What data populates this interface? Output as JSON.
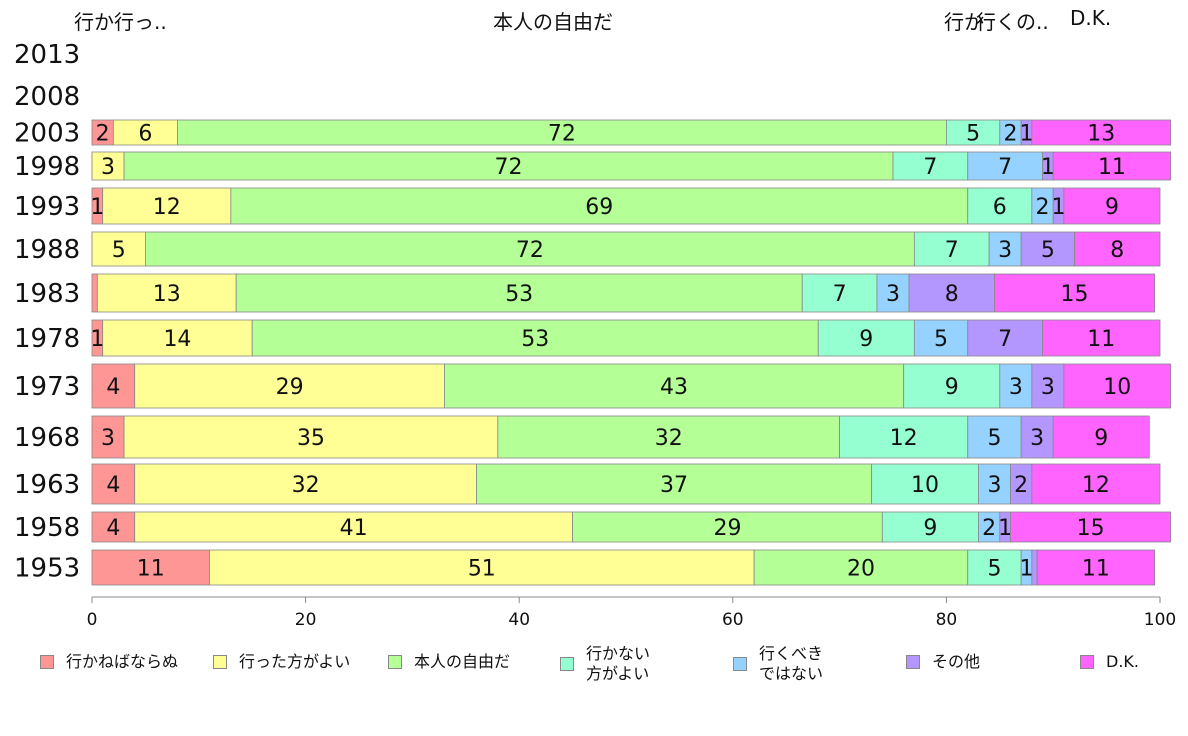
{
  "top_labels": {
    "left": "行か行っ..",
    "center": "本人の自由だ",
    "right_overlap_a": "行か",
    "right_overlap_b": "行くの..",
    "right": "D.K."
  },
  "colors": {
    "行かねばならぬ": "#ff9696",
    "行った方がよい": "#ffff96",
    "本人の自由だ": "#b4ff96",
    "行かない方がよい": "#96ffd2",
    "行くべきではない": "#96d2ff",
    "その他": "#b496ff",
    "D.K.": "#ff64ff"
  },
  "legend": [
    {
      "label": "行かねばならぬ",
      "color": "#ff9696"
    },
    {
      "label": "行った方がよい",
      "color": "#ffff96"
    },
    {
      "label": "本人の自由だ",
      "color": "#b4ff96"
    },
    {
      "label": "行かない\n方がよい",
      "color": "#96ffd2"
    },
    {
      "label": "行くべき\nではない",
      "color": "#96d2ff"
    },
    {
      "label": "その他",
      "color": "#b496ff"
    },
    {
      "label": "D.K.",
      "color": "#ff64ff"
    }
  ],
  "chart_data": {
    "type": "bar",
    "orientation": "horizontal",
    "stacked": true,
    "categories": [
      "2013",
      "2008",
      "2003",
      "1998",
      "1993",
      "1988",
      "1983",
      "1978",
      "1973",
      "1968",
      "1963",
      "1958",
      "1953"
    ],
    "series": [
      {
        "name": "行かねばならぬ",
        "values": [
          null,
          null,
          2,
          0,
          1,
          0,
          0.5,
          1,
          4,
          3,
          4,
          4,
          11
        ],
        "labels": [
          "",
          "",
          "2",
          "",
          "1",
          "",
          "",
          "1",
          "4",
          "3",
          "4",
          "4",
          "11"
        ]
      },
      {
        "name": "行った方がよい",
        "values": [
          null,
          null,
          6,
          3,
          12,
          5,
          13,
          14,
          29,
          35,
          32,
          41,
          51
        ],
        "labels": [
          "",
          "",
          "6",
          "3",
          "12",
          "5",
          "13",
          "14",
          "29",
          "35",
          "32",
          "41",
          "51"
        ]
      },
      {
        "name": "本人の自由だ",
        "values": [
          null,
          null,
          72,
          72,
          69,
          72,
          53,
          53,
          43,
          32,
          37,
          29,
          20
        ],
        "labels": [
          "",
          "",
          "72",
          "72",
          "69",
          "72",
          "53",
          "53",
          "43",
          "32",
          "37",
          "29",
          "20"
        ]
      },
      {
        "name": "行かない方がよい",
        "values": [
          null,
          null,
          5,
          7,
          6,
          7,
          7,
          9,
          9,
          12,
          10,
          9,
          5
        ],
        "labels": [
          "",
          "",
          "5",
          "7",
          "6",
          "7",
          "7",
          "9",
          "9",
          "12",
          "10",
          "9",
          "5"
        ]
      },
      {
        "name": "行くべきではない",
        "values": [
          null,
          null,
          2,
          7,
          2,
          3,
          3,
          5,
          3,
          5,
          3,
          2,
          1
        ],
        "labels": [
          "",
          "",
          "2",
          "7",
          "2",
          "3",
          "3",
          "5",
          "3",
          "5",
          "3",
          "2",
          "1"
        ]
      },
      {
        "name": "その他",
        "values": [
          null,
          null,
          1,
          1,
          1,
          5,
          8,
          7,
          3,
          3,
          2,
          1,
          0.5
        ],
        "labels": [
          "",
          "",
          "1",
          "1",
          "1",
          "5",
          "8",
          "7",
          "3",
          "3",
          "2",
          "1",
          ""
        ]
      },
      {
        "name": "D.K.",
        "values": [
          null,
          null,
          13,
          11,
          9,
          8,
          15,
          11,
          10,
          9,
          12,
          15,
          11
        ],
        "labels": [
          "",
          "",
          "13",
          "11",
          "9",
          "8",
          "15",
          "11",
          "10",
          "9",
          "12",
          "15",
          "11"
        ]
      }
    ],
    "xlim": [
      0,
      100
    ],
    "xticks": [
      "0",
      "20",
      "40",
      "60",
      "80",
      "100"
    ],
    "grid": false,
    "legend_position": "bottom"
  }
}
